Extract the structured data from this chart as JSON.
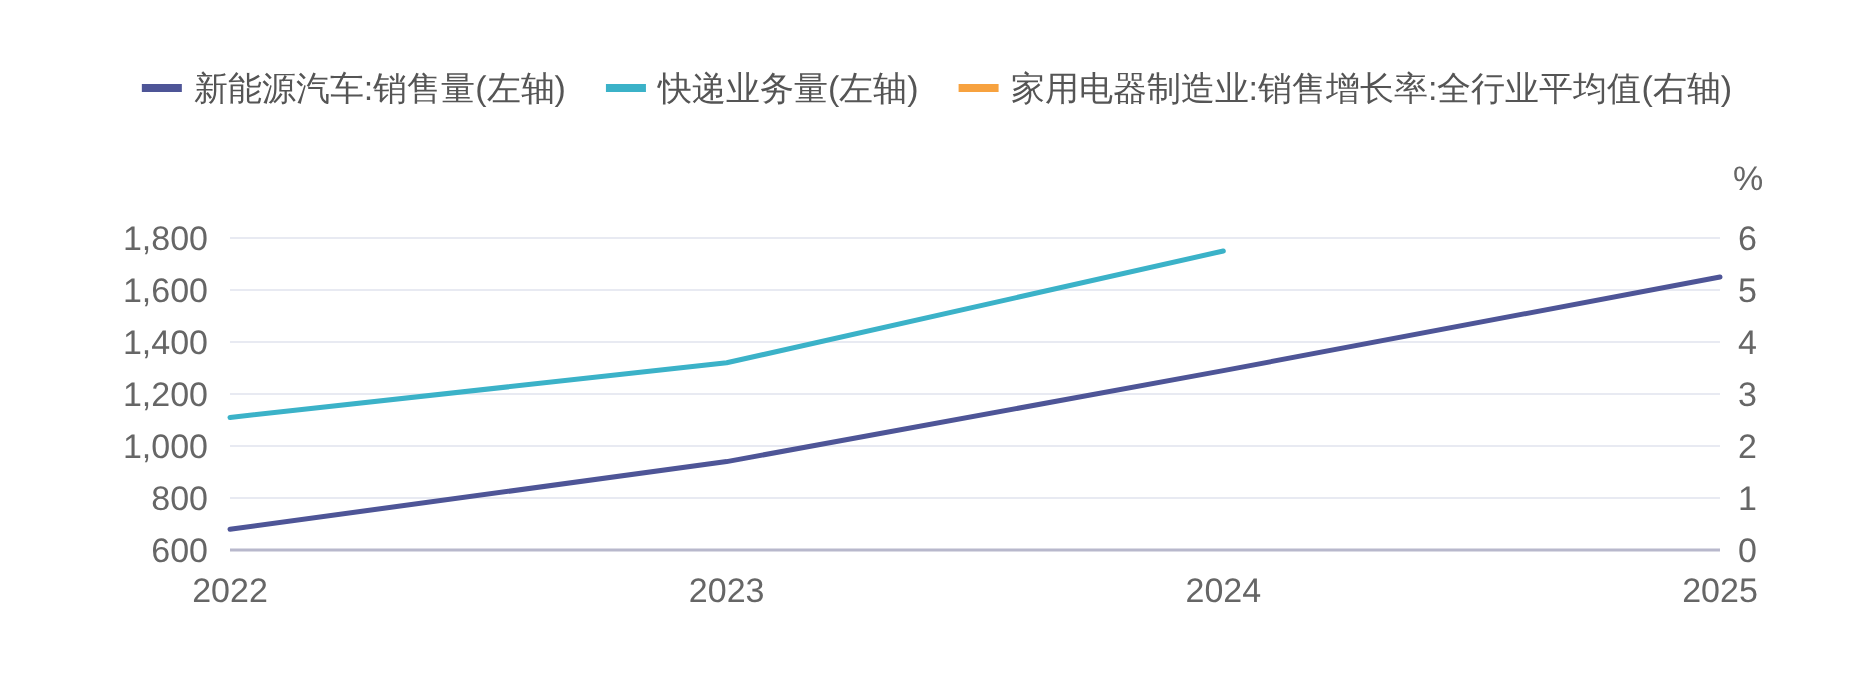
{
  "chart_data": {
    "type": "line",
    "categories": [
      "2022",
      "2023",
      "2024",
      "2025"
    ],
    "series": [
      {
        "name": "新能源汽车:销售量(左轴)",
        "color": "#4e5597",
        "values": [
          680,
          940,
          1290,
          1650
        ]
      },
      {
        "name": "快递业务量(左轴)",
        "color": "#3bb2c8",
        "values": [
          1110,
          1320,
          1750,
          null
        ]
      },
      {
        "name": "家用电器制造业:销售增长率:全行业平均值(右轴)",
        "color": "#f7a23f",
        "axis": "y2",
        "values": [
          null,
          null,
          null,
          null
        ]
      }
    ],
    "ylim": [
      600,
      1800
    ],
    "yticks": [
      {
        "value": 600,
        "label": "600"
      },
      {
        "value": 800,
        "label": "800"
      },
      {
        "value": 1000,
        "label": "1,000"
      },
      {
        "value": 1200,
        "label": "1,200"
      },
      {
        "value": 1400,
        "label": "1,400"
      },
      {
        "value": 1600,
        "label": "1,600"
      },
      {
        "value": 1800,
        "label": "1,800"
      }
    ],
    "y2lim": [
      0,
      6
    ],
    "y2ticks": [
      0,
      1,
      2,
      3,
      4,
      5,
      6
    ],
    "y2label": "%",
    "grid": "y",
    "legend": "top",
    "marker": "none"
  }
}
